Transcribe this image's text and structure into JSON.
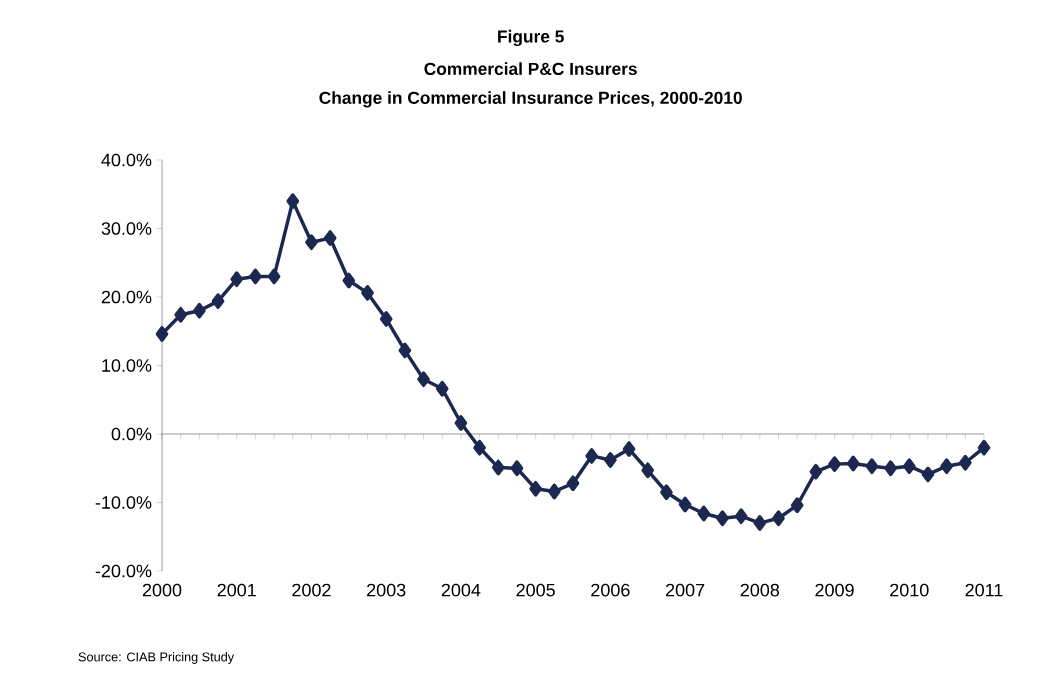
{
  "chart_data": {
    "type": "line",
    "title": "Figure 5",
    "subtitle": "Commercial P&C Insurers",
    "annotations": [
      "Change in Commercial Insurance Prices, 2000-2010",
      "Source: CIAB Pricing Study"
    ],
    "x": [
      2000,
      2000.25,
      2000.5,
      2000.75,
      2001,
      2001.25,
      2001.5,
      2001.75,
      2002,
      2002.25,
      2002.5,
      2002.75,
      2003,
      2003.25,
      2003.5,
      2003.75,
      2004,
      2004.25,
      2004.5,
      2004.75,
      2005,
      2005.25,
      2005.5,
      2005.75,
      2006,
      2006.25,
      2006.5,
      2006.75,
      2007,
      2007.25,
      2007.5,
      2007.75,
      2008,
      2008.25,
      2008.5,
      2008.75,
      2009,
      2009.25,
      2009.5,
      2009.75,
      2010,
      2010.25,
      2010.5,
      2010.75,
      2011
    ],
    "series": [
      {
        "color": "#1c2850",
        "values": [
          14.6,
          17.4,
          18.0,
          19.4,
          22.6,
          23.0,
          23.0,
          34.0,
          28.0,
          28.6,
          22.4,
          20.6,
          16.8,
          12.2,
          8.0,
          6.6,
          1.6,
          -2.0,
          -4.9,
          -5.0,
          -8.0,
          -8.4,
          -7.2,
          -3.2,
          -3.8,
          -2.2,
          -5.3,
          -8.5,
          -10.3,
          -11.6,
          -12.3,
          -12.0,
          -13.0,
          -12.3,
          -10.4,
          -5.5,
          -4.4,
          -4.3,
          -4.7,
          -5.0,
          -4.7,
          -5.9,
          -4.7,
          -4.2,
          -2.0
        ]
      }
    ],
    "xlim": [
      2000,
      2011
    ],
    "xticks": [
      2000,
      2001,
      2002,
      2003,
      2004,
      2005,
      2006,
      2007,
      2008,
      2009,
      2010,
      2011
    ],
    "ylim": [
      -20,
      40
    ],
    "yticks": [
      {
        "value": -20,
        "label": "-20.0%"
      },
      {
        "value": -10,
        "label": "-10.0%"
      },
      {
        "value": 0,
        "label": "0.0%"
      },
      {
        "value": 10,
        "label": "10.0%"
      },
      {
        "value": 20,
        "label": "20.0%"
      },
      {
        "value": 30,
        "label": "30.0%"
      },
      {
        "value": 40,
        "label": "40.0%"
      }
    ],
    "marker": "diamond",
    "line_style": "solid"
  }
}
